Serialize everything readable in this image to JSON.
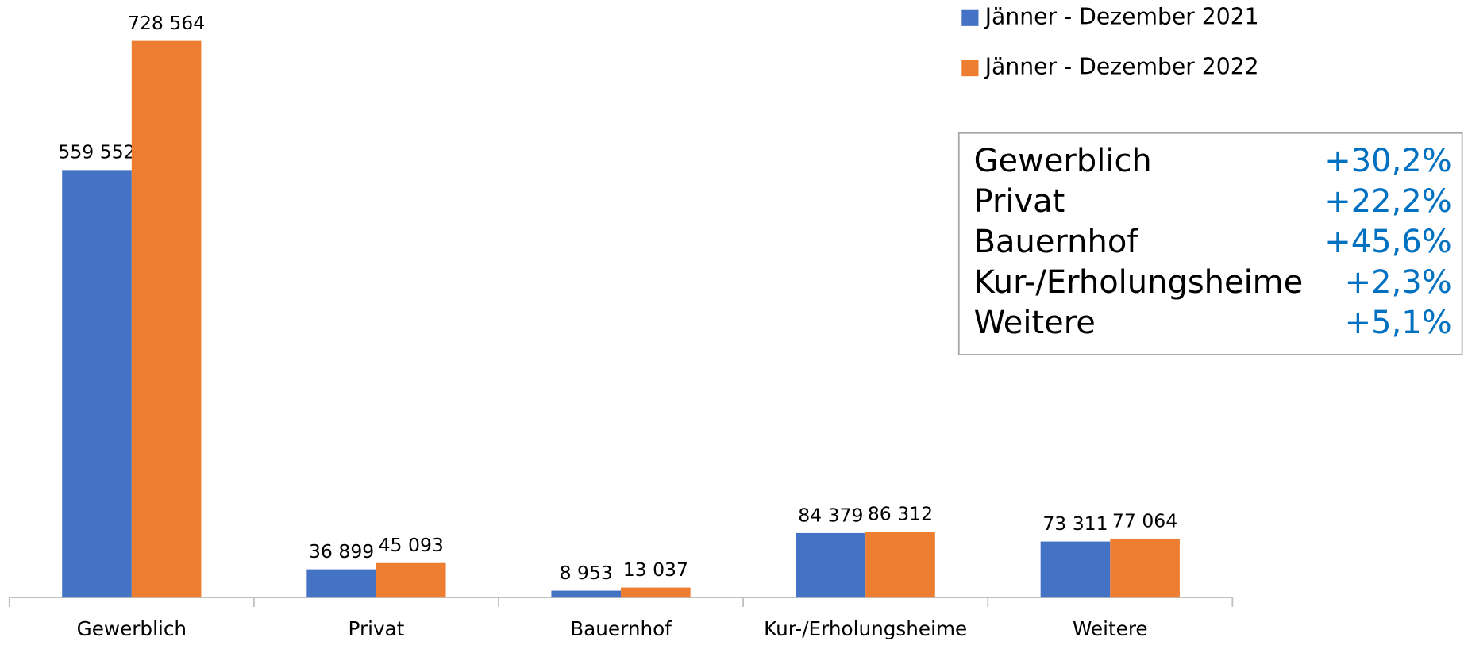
{
  "chart_data": {
    "type": "bar",
    "categories": [
      "Gewerblich",
      "Privat",
      "Bauernhof",
      "Kur-/Erholungsheime",
      "Weitere"
    ],
    "series": [
      {
        "name": "Jänner - Dezember 2021",
        "color": "#4472c4",
        "values": [
          559552,
          36899,
          8953,
          84379,
          73311
        ],
        "value_labels": [
          "559 552",
          "36 899",
          "8 953",
          "84 379",
          "73 311"
        ]
      },
      {
        "name": "Jänner - Dezember 2022",
        "color": "#ed7d31",
        "values": [
          728564,
          45093,
          13037,
          86312,
          77064
        ],
        "value_labels": [
          "728 564",
          "45 093",
          "13 037",
          "86 312",
          "77 064"
        ]
      }
    ],
    "legend": "top-right",
    "change_table": [
      {
        "label": "Gewerblich",
        "change": "+30,2%"
      },
      {
        "label": "Privat",
        "change": "+22,2%"
      },
      {
        "label": "Bauernhof",
        "change": "+45,6%"
      },
      {
        "label": "Kur-/Erholungsheime",
        "change": "+2,3%"
      },
      {
        "label": "Weitere",
        "change": "+5,1%"
      }
    ]
  }
}
